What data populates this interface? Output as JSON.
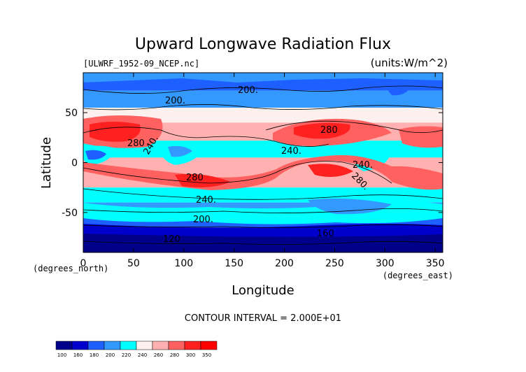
{
  "chart_data": {
    "type": "contour",
    "title": "Upward Longwave Radiation Flux",
    "subtitle_left": "[ULWRF_1952-09_NCEP.nc]",
    "subtitle_right": "(units:W/m^2)",
    "xlabel": "Longitude",
    "xunit": "(degrees_east)",
    "ylabel": "Latitude",
    "yunit": "(degrees_north)",
    "xlim": [
      0,
      357.5
    ],
    "ylim": [
      -90,
      90
    ],
    "x_ticks": [
      "0",
      "50",
      "100",
      "150",
      "200",
      "250",
      "300",
      "350"
    ],
    "x_tick_values": [
      0,
      50,
      100,
      150,
      200,
      250,
      300,
      350
    ],
    "y_ticks": [
      "50",
      "0",
      "-50"
    ],
    "y_tick_values": [
      50,
      0,
      -50
    ],
    "contour_interval_text": "CONTOUR INTERVAL = 2.000E+01",
    "contour_labels": [
      "200.",
      "200.",
      "280",
      "280",
      "240.",
      "280",
      "240.",
      "240.",
      "280.",
      "240.",
      "200.",
      "120",
      "160"
    ],
    "colorbar": {
      "levels": [
        "100",
        "160",
        "180",
        "200",
        "220",
        "240",
        "260",
        "280",
        "300",
        "350"
      ],
      "colors": [
        "#00008b",
        "#0000cd",
        "#1e5fff",
        "#3399ff",
        "#00ffff",
        "#fff0f0",
        "#ffb0b0",
        "#ff6060",
        "#ff2020",
        "#ff0000"
      ]
    },
    "bands": [
      {
        "lat_from": 90,
        "lat_to": 72,
        "value": 190
      },
      {
        "lat_from": 72,
        "lat_to": 55,
        "value": 210
      },
      {
        "lat_from": 55,
        "lat_to": 40,
        "value": 240
      },
      {
        "lat_from": 40,
        "lat_to": 22,
        "value": 275
      },
      {
        "lat_from": 22,
        "lat_to": 5,
        "value": 235
      },
      {
        "lat_from": 5,
        "lat_to": -25,
        "value": 270
      },
      {
        "lat_from": -25,
        "lat_to": -40,
        "value": 235
      },
      {
        "lat_from": -40,
        "lat_to": -55,
        "value": 210
      },
      {
        "lat_from": -55,
        "lat_to": -65,
        "value": 180
      },
      {
        "lat_from": -65,
        "lat_to": -90,
        "value": 150
      }
    ]
  }
}
